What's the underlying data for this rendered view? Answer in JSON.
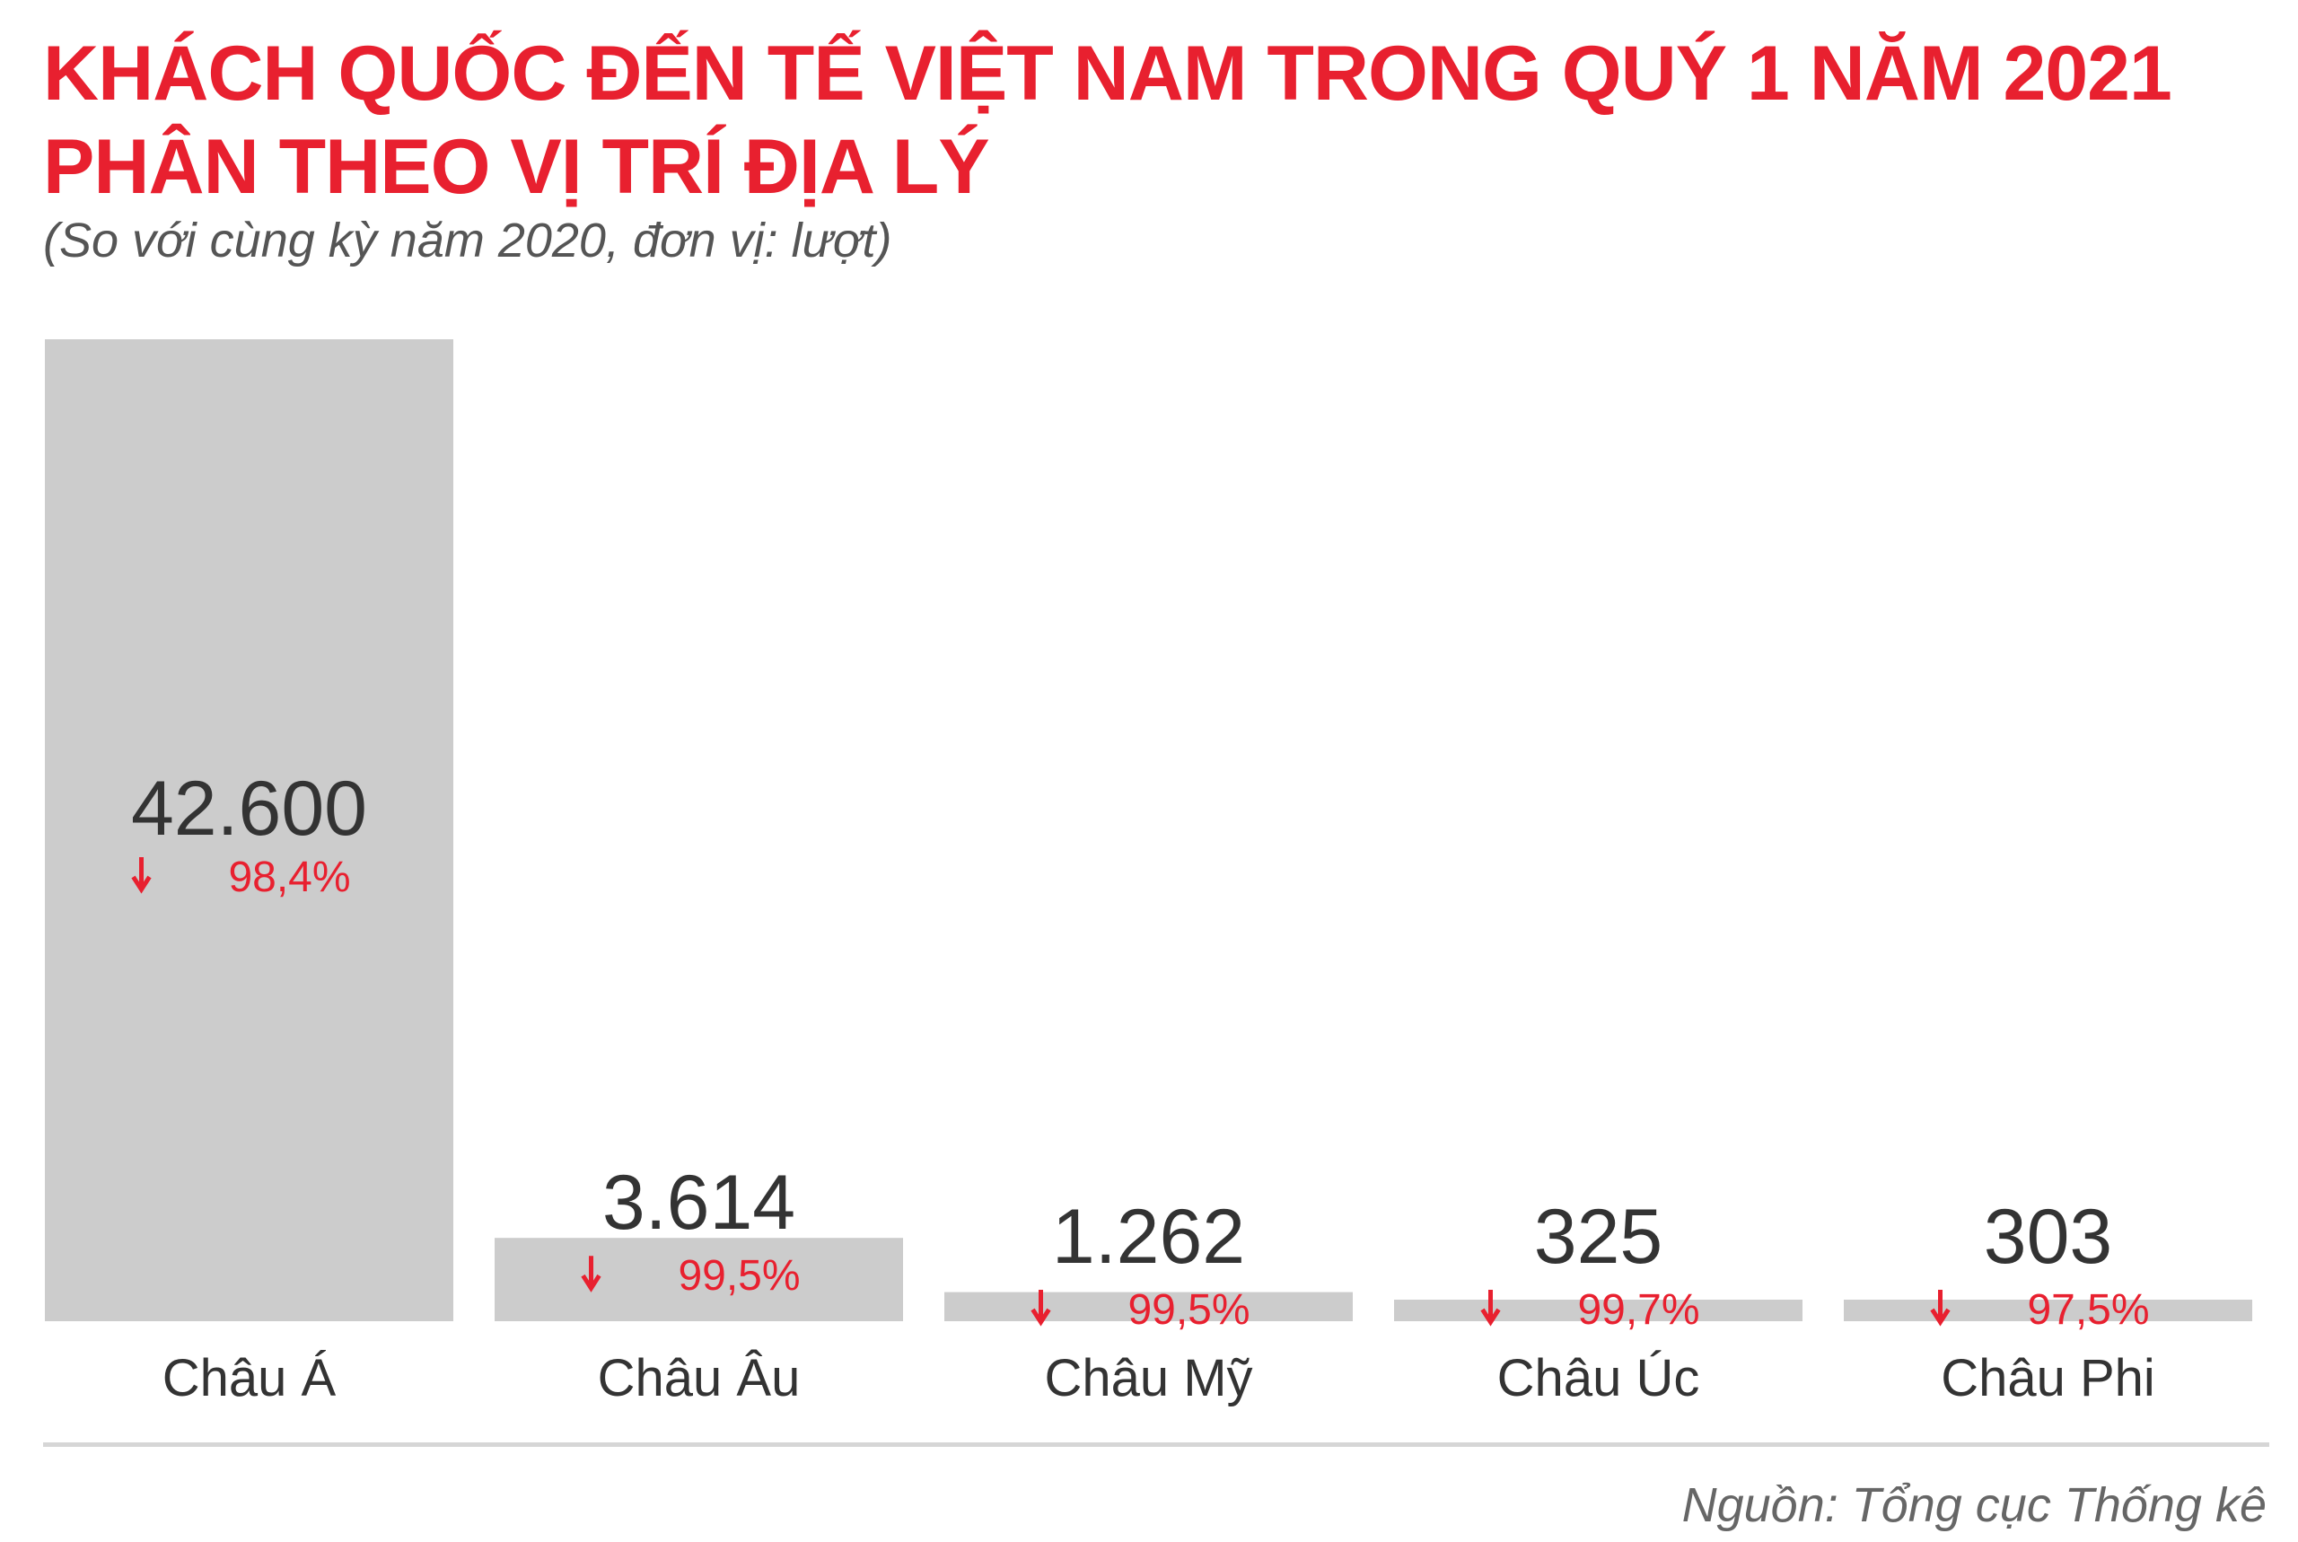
{
  "header": {
    "title_line1": "KHÁCH QUỐC ĐẾN TẾ VIỆT NAM TRONG QUÝ 1 NĂM 2021",
    "title_line2": "PHÂN THEO VỊ TRÍ ĐỊA LÝ",
    "subtitle": "(So với cùng kỳ năm 2020, đơn vị: lượt)"
  },
  "footer": {
    "source": "Nguồn: Tổng cục Thống kê"
  },
  "colors": {
    "title": "#e8202f",
    "bar": "#cccccc",
    "value": "#333333",
    "change": "#e8202f",
    "label": "#333333"
  },
  "chart_data": {
    "type": "bar",
    "title": "",
    "xlabel": "",
    "ylabel": "",
    "ylim": [
      0,
      42600
    ],
    "grid": false,
    "categories": [
      "Châu Á",
      "Châu Âu",
      "Châu Mỹ",
      "Châu Úc",
      "Châu Phi"
    ],
    "values": [
      42600,
      3614,
      1262,
      325,
      303
    ],
    "value_labels": [
      "42.600",
      "3.614",
      "1.262",
      "325",
      "303"
    ],
    "change_labels": [
      "98,4%",
      "99,5%",
      "99,5%",
      "99,7%",
      "97,5%"
    ],
    "change_direction": "down"
  }
}
